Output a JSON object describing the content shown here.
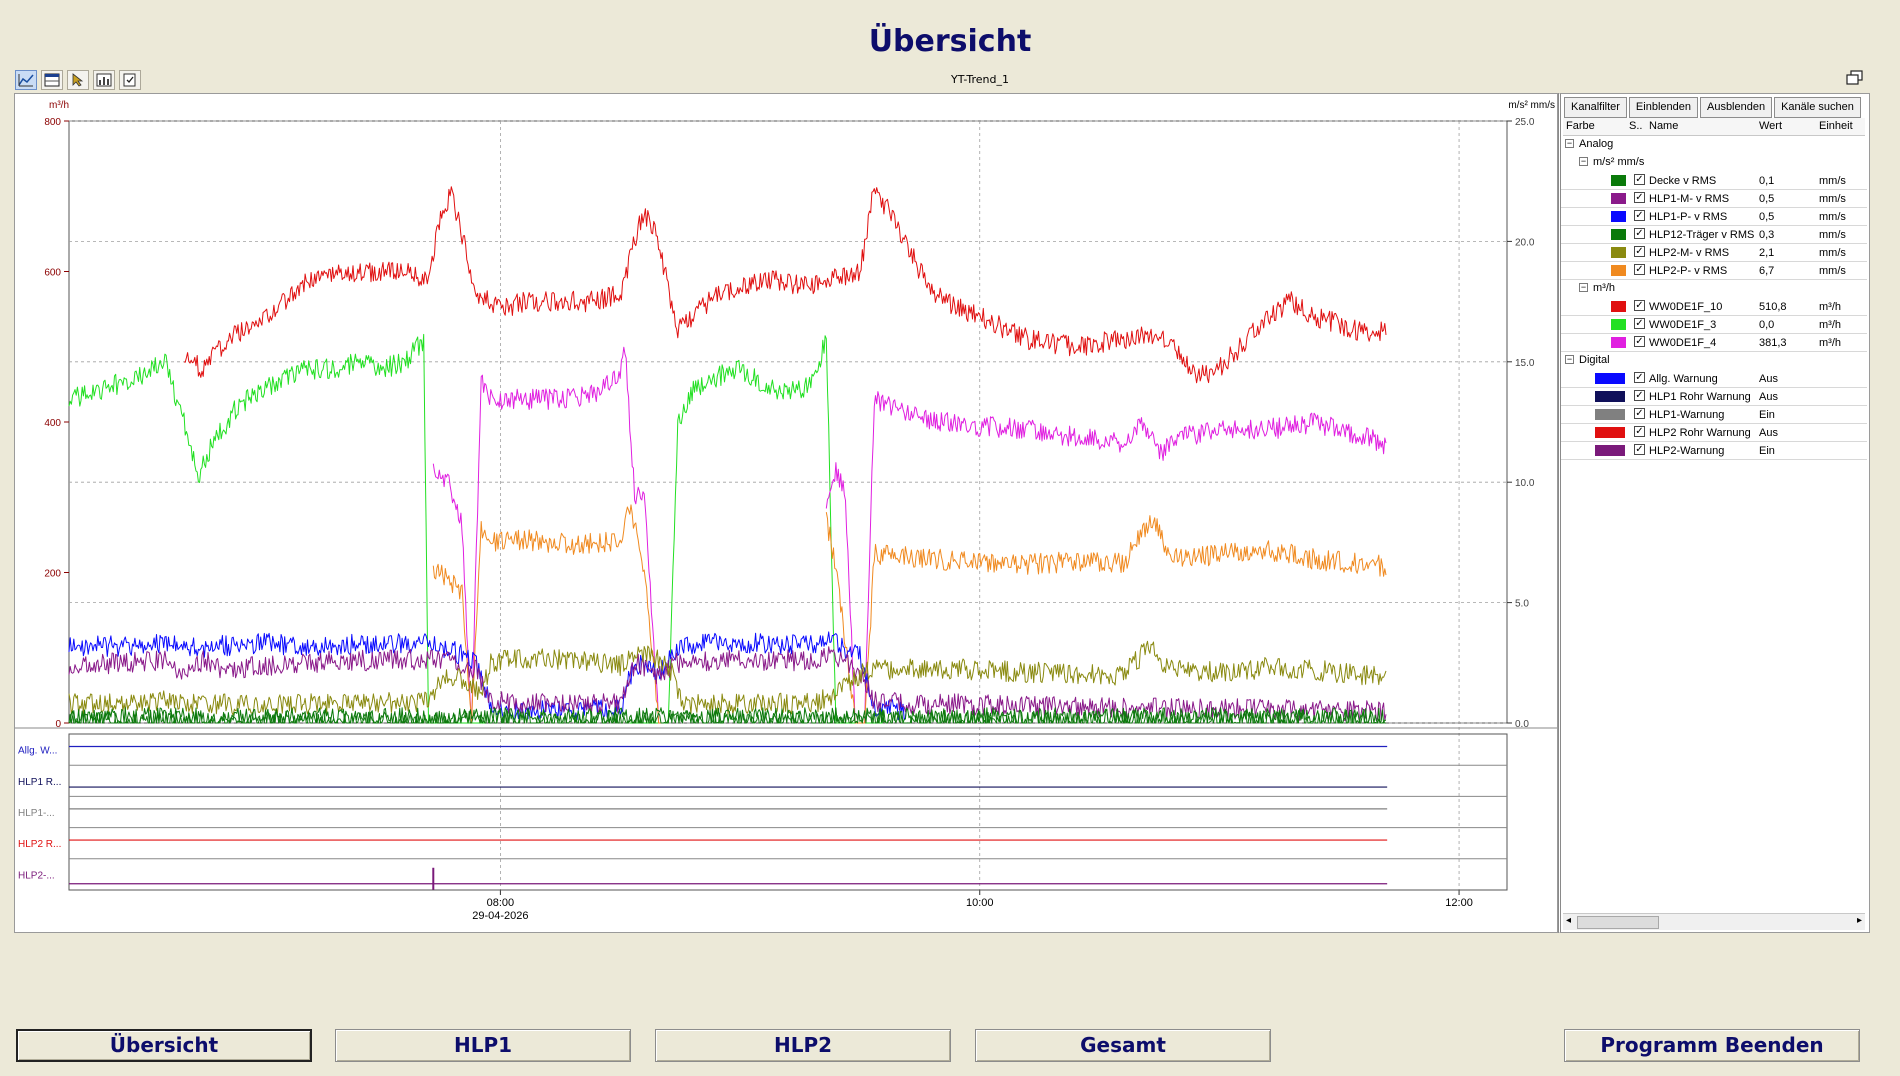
{
  "title": "Übersicht",
  "toolbar": {
    "icons": [
      "yt-chart-icon",
      "ruler-table-icon",
      "cursor-tool-icon",
      "statistics-icon",
      "export-icon"
    ]
  },
  "trend": {
    "caption": "YT-Trend_1"
  },
  "chart_data": {
    "type": "line",
    "left_axis": {
      "unit": "m³/h",
      "ylim": [
        0,
        800
      ],
      "ticks": [
        "0",
        "200",
        "400",
        "600",
        "800"
      ]
    },
    "right_axis": {
      "unit": "m/s² mm/s",
      "ylim": [
        0,
        25
      ],
      "ticks": [
        "0.0",
        "5.0",
        "10.0",
        "15.0",
        "20.0",
        "25.0"
      ]
    },
    "x_ticks": [
      {
        "label": "08:00",
        "sublabel": "29-04-2026"
      },
      {
        "label": "10:00",
        "sublabel": ""
      },
      {
        "label": "12:00",
        "sublabel": ""
      }
    ],
    "xlim": [
      0,
      300
    ],
    "x_tick_positions": [
      90,
      190,
      290
    ],
    "grid": true,
    "series": [
      {
        "name": "WW0DE1F_10",
        "axis": "left",
        "color": "#e01010",
        "x": [
          0,
          12,
          20,
          24,
          28,
          33,
          40,
          50,
          60,
          70,
          75,
          78,
          80,
          85,
          90,
          95,
          100,
          108,
          115,
          118,
          120,
          123,
          127,
          135,
          145,
          155,
          160,
          165,
          168,
          172,
          180,
          190,
          200,
          210,
          220,
          225,
          230,
          235,
          240,
          250,
          255,
          260,
          270,
          275
        ],
        "y": [
          null,
          null,
          null,
          490,
          470,
          510,
          530,
          590,
          600,
          600,
          590,
          690,
          700,
          570,
          550,
          560,
          560,
          560,
          570,
          640,
          680,
          640,
          520,
          570,
          590,
          580,
          590,
          600,
          710,
          670,
          570,
          540,
          510,
          500,
          510,
          520,
          500,
          460,
          470,
          540,
          560,
          540,
          520,
          520
        ]
      },
      {
        "name": "WW0DE1F_3",
        "axis": "left",
        "color": "#22e022",
        "x": [
          0,
          5,
          10,
          15,
          20,
          24,
          27,
          30,
          35,
          40,
          45,
          50,
          55,
          60,
          65,
          70,
          74,
          75,
          77,
          79,
          83,
          85,
          87,
          90,
          110,
          115,
          117,
          118,
          120,
          123,
          125,
          127,
          130,
          135,
          140,
          145,
          150,
          155,
          158,
          160,
          161,
          163,
          165,
          168,
          170
        ],
        "y": [
          430,
          440,
          450,
          460,
          480,
          400,
          330,
          370,
          420,
          440,
          460,
          470,
          470,
          480,
          470,
          480,
          510,
          0,
          0,
          0,
          0,
          0,
          0,
          null,
          null,
          null,
          0,
          0,
          0,
          0,
          0,
          400,
          440,
          460,
          470,
          450,
          440,
          450,
          510,
          0,
          0,
          0,
          0,
          0,
          0
        ]
      },
      {
        "name": "WW0DE1F_4",
        "axis": "left",
        "color": "#e020e0",
        "x": [
          74,
          76,
          79,
          82,
          84,
          86,
          88,
          95,
          105,
          110,
          115,
          116,
          118,
          120,
          123,
          124,
          127,
          155,
          158,
          160,
          162,
          164,
          166,
          168,
          180,
          200,
          210,
          220,
          224,
          228,
          232,
          240,
          250,
          260,
          270,
          275
        ],
        "y": [
          null,
          340,
          320,
          260,
          0,
          460,
          430,
          430,
          430,
          440,
          460,
          500,
          300,
          300,
          0,
          0,
          null,
          null,
          280,
          340,
          300,
          0,
          0,
          430,
          400,
          390,
          380,
          370,
          400,
          360,
          380,
          390,
          390,
          400,
          380,
          370
        ]
      },
      {
        "name": "HLP2-P- v RMS",
        "axis": "right",
        "color": "#f08a20",
        "x": [
          74,
          76,
          79,
          82,
          84,
          86,
          88,
          95,
          105,
          115,
          117,
          120,
          123,
          124,
          127,
          155,
          158,
          160,
          164,
          166,
          168,
          180,
          200,
          210,
          220,
          226,
          230,
          240,
          250,
          260,
          270,
          275
        ],
        "y": [
          null,
          6.5,
          6.0,
          5.5,
          0,
          8.0,
          7.5,
          7.6,
          7.4,
          7.6,
          9.0,
          6.5,
          0,
          0,
          null,
          null,
          8.5,
          6.5,
          0,
          0,
          7.0,
          6.8,
          6.6,
          6.7,
          6.6,
          8.5,
          6.8,
          7.0,
          7.2,
          6.8,
          6.6,
          6.5
        ]
      },
      {
        "name": "HLP1-P- v RMS",
        "axis": "right",
        "color": "#0a0aff",
        "x": [
          0,
          10,
          20,
          25,
          30,
          40,
          50,
          60,
          70,
          75,
          80,
          85,
          88,
          95,
          105,
          115,
          118,
          123,
          127,
          135,
          145,
          155,
          158,
          165,
          168,
          175
        ],
        "y": [
          3.2,
          3.2,
          3.3,
          3.1,
          3.2,
          3.3,
          3.2,
          3.3,
          3.3,
          3.4,
          3.0,
          2.5,
          0.6,
          0.5,
          0.5,
          0.6,
          2.5,
          2.0,
          3.2,
          3.3,
          3.3,
          3.3,
          3.5,
          2.8,
          0.6,
          0.5
        ]
      },
      {
        "name": "HLP1-M- v RMS",
        "axis": "right",
        "color": "#8a1a8a",
        "x": [
          0,
          10,
          20,
          24,
          28,
          32,
          40,
          50,
          60,
          70,
          75,
          80,
          85,
          88,
          95,
          105,
          115,
          118,
          123,
          127,
          135,
          145,
          155,
          158,
          165,
          168,
          180,
          200,
          220,
          240,
          260,
          275
        ],
        "y": [
          2.4,
          2.5,
          2.6,
          2.0,
          2.6,
          2.2,
          2.4,
          2.5,
          2.6,
          2.6,
          2.7,
          2.5,
          2.2,
          0.9,
          0.8,
          0.8,
          0.8,
          2.5,
          2.0,
          2.5,
          2.6,
          2.6,
          2.6,
          2.8,
          2.2,
          0.9,
          0.8,
          0.7,
          0.6,
          0.6,
          0.5,
          0.5
        ]
      },
      {
        "name": "HLP2-M- v RMS",
        "axis": "right",
        "color": "#8a8a10",
        "x": [
          0,
          10,
          20,
          30,
          40,
          50,
          60,
          70,
          75,
          78,
          83,
          86,
          88,
          95,
          105,
          115,
          118,
          123,
          126,
          128,
          135,
          145,
          155,
          158,
          165,
          168,
          180,
          200,
          220,
          226,
          228,
          232,
          240,
          250,
          260,
          270,
          275
        ],
        "y": [
          0.8,
          0.8,
          0.9,
          0.8,
          0.7,
          0.8,
          0.8,
          0.9,
          0.9,
          2.0,
          1.8,
          1.2,
          2.5,
          2.7,
          2.6,
          2.4,
          3.0,
          2.6,
          2.0,
          0.8,
          0.8,
          0.8,
          0.8,
          1.0,
          2.0,
          2.2,
          2.3,
          2.1,
          2.0,
          3.3,
          2.4,
          2.2,
          2.1,
          2.3,
          2.2,
          2.0,
          2.0
        ]
      },
      {
        "name": "HLP12-Träger v RMS",
        "axis": "right",
        "color": "#0a7a0a",
        "x": [
          0,
          100,
          200,
          275
        ],
        "y": [
          0.2,
          0.2,
          0.2,
          0.2
        ]
      },
      {
        "name": "Decke v RMS",
        "axis": "right",
        "color": "#107a10",
        "x": [
          0,
          100,
          200,
          275
        ],
        "y": [
          0.1,
          0.1,
          0.1,
          0.1
        ]
      }
    ],
    "digital_tracks": [
      {
        "label": "Allg. W...",
        "color": "#2020c0",
        "level": 0.6
      },
      {
        "label": "HLP1 R...",
        "color": "#10105a",
        "level": 0.3
      },
      {
        "label": "HLP1-...",
        "color": "#808080",
        "level": 0.6
      },
      {
        "label": "HLP2 R...",
        "color": "#e01010",
        "level": 0.6
      },
      {
        "label": "HLP2-...",
        "color": "#7a1a7a",
        "level": 0.2,
        "spike_x": 76
      }
    ]
  },
  "panel": {
    "buttons": [
      "Kanalfilter",
      "Einblenden",
      "Ausblenden",
      "Kanäle suchen"
    ],
    "columns": {
      "farbe": "Farbe",
      "s": "S..",
      "name": "Name",
      "wert": "Wert",
      "einheit": "Einheit"
    },
    "groups": {
      "analog": "Analog",
      "sub1": "m/s² mm/s",
      "sub2": "m³/h",
      "digital": "Digital"
    },
    "items": [
      {
        "color": "#0a7a0a",
        "name": "Decke v RMS",
        "value": "0,1",
        "unit": "mm/s"
      },
      {
        "color": "#8a1a8a",
        "name": "HLP1-M- v RMS",
        "value": "0,5",
        "unit": "mm/s"
      },
      {
        "color": "#0a0aff",
        "name": "HLP1-P- v RMS",
        "value": "0,5",
        "unit": "mm/s"
      },
      {
        "color": "#0a7a0a",
        "name": "HLP12-Träger v RMS",
        "value": "0,3",
        "unit": "mm/s"
      },
      {
        "color": "#8a8a10",
        "name": "HLP2-M- v RMS",
        "value": "2,1",
        "unit": "mm/s"
      },
      {
        "color": "#f08a20",
        "name": "HLP2-P- v RMS",
        "value": "6,7",
        "unit": "mm/s"
      },
      {
        "color": "#e01010",
        "name": "WW0DE1F_10",
        "value": "510,8",
        "unit": "m³/h"
      },
      {
        "color": "#22e022",
        "name": "WW0DE1F_3",
        "value": "0,0",
        "unit": "m³/h"
      },
      {
        "color": "#e020e0",
        "name": "WW0DE1F_4",
        "value": "381,3",
        "unit": "m³/h"
      },
      {
        "color": "#0a0aff",
        "name": "Allg. Warnung",
        "value": "Aus",
        "unit": ""
      },
      {
        "color": "#10105a",
        "name": "HLP1 Rohr Warnung",
        "value": "Aus",
        "unit": ""
      },
      {
        "color": "#808080",
        "name": "HLP1-Warnung",
        "value": "Ein",
        "unit": ""
      },
      {
        "color": "#e01010",
        "name": "HLP2 Rohr Warnung",
        "value": "Aus",
        "unit": ""
      },
      {
        "color": "#7a1a7a",
        "name": "HLP2-Warnung",
        "value": "Ein",
        "unit": ""
      }
    ]
  },
  "nav": {
    "uebersicht": "Übersicht",
    "hlp1": "HLP1",
    "hlp2": "HLP2",
    "gesamt": "Gesamt",
    "beenden": "Programm Beenden"
  }
}
